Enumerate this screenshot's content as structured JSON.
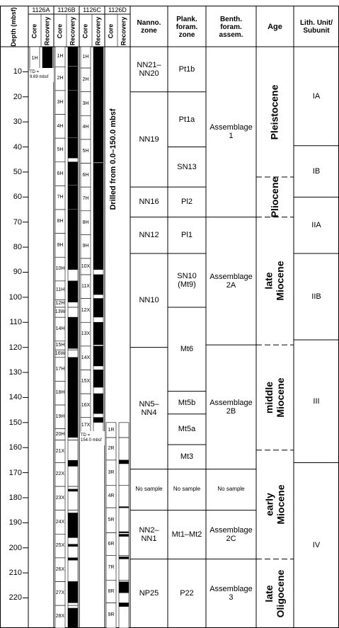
{
  "header": {
    "depth_label": "Depth (mbsf)",
    "core_label": "Core",
    "recovery_label": "Recovery"
  },
  "depth_axis": {
    "range": [
      0,
      232
    ],
    "ticks": [
      10,
      20,
      30,
      40,
      50,
      60,
      70,
      80,
      90,
      100,
      110,
      120,
      130,
      140,
      150,
      160,
      170,
      180,
      190,
      200,
      210,
      220
    ]
  },
  "sites": [
    {
      "name": "1126A",
      "note": "TD =\n9.69 mbsf",
      "cores": [
        {
          "label": "1H",
          "top": 0,
          "bottom": 9.7,
          "rec": [
            [
              0,
              9
            ]
          ]
        }
      ]
    },
    {
      "name": "1126B",
      "cores": [
        {
          "label": "1H",
          "top": 0,
          "bottom": 8,
          "rec": [
            [
              0,
              7.8
            ]
          ]
        },
        {
          "label": "2H",
          "top": 8,
          "bottom": 17.5,
          "rec": [
            [
              8,
              17.3
            ]
          ]
        },
        {
          "label": "3H",
          "top": 17.5,
          "bottom": 27,
          "rec": [
            [
              17.5,
              27
            ]
          ]
        },
        {
          "label": "4H",
          "top": 27,
          "bottom": 36.5,
          "rec": [
            [
              27,
              36.3
            ]
          ]
        },
        {
          "label": "5H",
          "top": 36.5,
          "bottom": 46,
          "rec": [
            [
              36.5,
              44.5
            ]
          ]
        },
        {
          "label": "6H",
          "top": 46,
          "bottom": 55.5,
          "rec": [
            [
              46,
              55.3
            ]
          ]
        },
        {
          "label": "7H",
          "top": 55.5,
          "bottom": 65,
          "rec": [
            [
              55.5,
              64.8
            ]
          ]
        },
        {
          "label": "8H",
          "top": 65,
          "bottom": 74.5,
          "rec": [
            [
              65,
              74.5
            ]
          ]
        },
        {
          "label": "9H",
          "top": 74.5,
          "bottom": 84,
          "rec": [
            [
              74.5,
              84
            ]
          ]
        },
        {
          "label": "10H",
          "top": 84,
          "bottom": 93.5,
          "rec": [
            [
              84,
              89
            ]
          ]
        },
        {
          "label": "11H",
          "top": 93.5,
          "bottom": 101,
          "rec": [
            [
              93.5,
              101
            ]
          ]
        },
        {
          "label": "12H",
          "top": 101,
          "bottom": 104,
          "rec": [
            [
              101,
              102
            ]
          ]
        },
        {
          "label": "13W",
          "top": 104,
          "bottom": 108,
          "rec": []
        },
        {
          "label": "14H",
          "top": 108,
          "bottom": 117.5,
          "rec": [
            [
              108,
              117.5
            ]
          ]
        },
        {
          "label": "15H",
          "top": 117.5,
          "bottom": 121,
          "rec": [
            [
              117.5,
              120.5
            ]
          ]
        },
        {
          "label": "16W",
          "top": 121,
          "bottom": 124,
          "rec": []
        },
        {
          "label": "17H",
          "top": 124,
          "bottom": 133.5,
          "rec": [
            [
              124,
              133.5
            ]
          ]
        },
        {
          "label": "18H",
          "top": 133.5,
          "bottom": 143,
          "rec": [
            [
              133.5,
              143
            ]
          ]
        },
        {
          "label": "19H",
          "top": 143,
          "bottom": 152.5,
          "rec": [
            [
              143,
              152.5
            ]
          ]
        },
        {
          "label": "20H",
          "top": 152.5,
          "bottom": 157,
          "rec": [
            [
              152.5,
              156
            ]
          ]
        },
        {
          "label": "21X",
          "top": 157,
          "bottom": 166,
          "rec": [
            [
              165,
              166
            ]
          ]
        },
        {
          "label": "22X",
          "top": 166,
          "bottom": 175.5,
          "rec": [
            [
              166,
              167.5
            ]
          ]
        },
        {
          "label": "23X",
          "top": 175.5,
          "bottom": 185,
          "rec": [
            [
              176.5,
              177.5
            ]
          ]
        },
        {
          "label": "24X",
          "top": 185,
          "bottom": 194.5,
          "rec": [
            [
              186,
              194.5
            ]
          ]
        },
        {
          "label": "25X",
          "top": 194.5,
          "bottom": 204,
          "rec": [
            [
              194.5,
              196
            ],
            [
              198.5,
              199.5
            ]
          ]
        },
        {
          "label": "26X",
          "top": 204,
          "bottom": 213.5,
          "rec": [
            [
              204,
              205
            ]
          ]
        },
        {
          "label": "27X",
          "top": 213.5,
          "bottom": 223,
          "rec": [
            [
              213.5,
              222
            ]
          ]
        },
        {
          "label": "28X",
          "top": 223,
          "bottom": 232,
          "rec": [
            [
              224,
              232
            ]
          ]
        }
      ]
    },
    {
      "name": "1126C",
      "note": "TD =\n154.0 mbsf",
      "cores": [
        {
          "label": "1H",
          "top": 0,
          "bottom": 8.5,
          "rec": [
            [
              0,
              8.5
            ]
          ]
        },
        {
          "label": "2H",
          "top": 8.5,
          "bottom": 18,
          "rec": [
            [
              8.5,
              18
            ]
          ]
        },
        {
          "label": "3H",
          "top": 18,
          "bottom": 27.5,
          "rec": [
            [
              18,
              27.5
            ]
          ]
        },
        {
          "label": "4H",
          "top": 27.5,
          "bottom": 37,
          "rec": [
            [
              27.5,
              37
            ]
          ]
        },
        {
          "label": "5H",
          "top": 37,
          "bottom": 46.5,
          "rec": [
            [
              37,
              46.2
            ]
          ]
        },
        {
          "label": "6H",
          "top": 46.5,
          "bottom": 56,
          "rec": [
            [
              46.5,
              56
            ]
          ]
        },
        {
          "label": "7H",
          "top": 56,
          "bottom": 65.5,
          "rec": [
            [
              56,
              65.5
            ]
          ]
        },
        {
          "label": "8H",
          "top": 65.5,
          "bottom": 75,
          "rec": [
            [
              65.5,
              75
            ]
          ]
        },
        {
          "label": "9H",
          "top": 75,
          "bottom": 84.5,
          "rec": [
            [
              75,
              84.5
            ]
          ]
        },
        {
          "label": "10X",
          "top": 84.5,
          "bottom": 91,
          "rec": [
            [
              84.5,
              89
            ]
          ]
        },
        {
          "label": "11X",
          "top": 91,
          "bottom": 100.5,
          "rec": [
            [
              91,
              99
            ]
          ]
        },
        {
          "label": "12X",
          "top": 100.5,
          "bottom": 110,
          "rec": [
            [
              100.5,
              108
            ]
          ]
        },
        {
          "label": "13X",
          "top": 110,
          "bottom": 119.5,
          "rec": [
            [
              110,
              119
            ]
          ]
        },
        {
          "label": "14X",
          "top": 119.5,
          "bottom": 129,
          "rec": [
            [
              119.5,
              127.5
            ]
          ]
        },
        {
          "label": "15X",
          "top": 129,
          "bottom": 138.5,
          "rec": [
            [
              129,
              136
            ]
          ]
        },
        {
          "label": "16X",
          "top": 138.5,
          "bottom": 148,
          "rec": [
            [
              138.5,
              146.5
            ]
          ]
        },
        {
          "label": "17X",
          "top": 148,
          "bottom": 154,
          "rec": [
            [
              148,
              150
            ]
          ]
        }
      ]
    },
    {
      "name": "1126D",
      "note": "Drilled from 0.0–150.0 mbsf",
      "cores": [
        {
          "label": "1R",
          "top": 150,
          "bottom": 156,
          "rec": []
        },
        {
          "label": "2R",
          "top": 156,
          "bottom": 165,
          "rec": []
        },
        {
          "label": "3R",
          "top": 165,
          "bottom": 175,
          "rec": [
            [
              165,
              166.5
            ]
          ]
        },
        {
          "label": "4R",
          "top": 175,
          "bottom": 184,
          "rec": [
            [
              183.5,
              184.5
            ]
          ]
        },
        {
          "label": "5R",
          "top": 184,
          "bottom": 194,
          "rec": [
            [
              193.5,
              194.5
            ]
          ]
        },
        {
          "label": "6R",
          "top": 194,
          "bottom": 203,
          "rec": [
            [
              194.5,
              195.5
            ]
          ]
        },
        {
          "label": "7R",
          "top": 203,
          "bottom": 213,
          "rec": [
            [
              203.5,
              204.5
            ]
          ]
        },
        {
          "label": "8R",
          "top": 213,
          "bottom": 222,
          "rec": [
            [
              213.5,
              218
            ]
          ]
        },
        {
          "label": "9R",
          "top": 222,
          "bottom": 232,
          "rec": [
            [
              222,
              223.5
            ]
          ]
        }
      ]
    }
  ],
  "zones": [
    {
      "title": "Nanno.\nzone",
      "units": [
        {
          "label": "NN21–\nNN20",
          "top": 0,
          "bottom": 18
        },
        {
          "label": "NN19",
          "top": 18,
          "bottom": 56
        },
        {
          "label": "NN16",
          "top": 56,
          "bottom": 68
        },
        {
          "label": "NN12",
          "top": 68,
          "bottom": 82.5
        },
        {
          "label": "NN10",
          "top": 82.5,
          "bottom": 120
        },
        {
          "label": "NN5–\nNN4",
          "top": 120,
          "bottom": 168.6
        },
        {
          "label": "No sample",
          "top": 168.6,
          "bottom": 185
        },
        {
          "label": "NN2–\nNN1",
          "top": 185,
          "bottom": 204.5
        },
        {
          "label": "NP25",
          "top": 204.5,
          "bottom": 232
        }
      ]
    },
    {
      "title": "Plank.\nforam.\nzone",
      "units": [
        {
          "label": "Pt1b",
          "top": 0,
          "bottom": 18
        },
        {
          "label": "Pt1a",
          "top": 18,
          "bottom": 40
        },
        {
          "label": "SN13",
          "top": 40,
          "bottom": 56
        },
        {
          "label": "Pl2",
          "top": 56,
          "bottom": 68
        },
        {
          "label": "Pl1",
          "top": 68,
          "bottom": 82.5
        },
        {
          "label": "SN10\n(Mt9)",
          "top": 82.5,
          "bottom": 104
        },
        {
          "label": "Mt6",
          "top": 104,
          "bottom": 137.5
        },
        {
          "label": "Mt5b",
          "top": 137.5,
          "bottom": 146.6
        },
        {
          "label": "Mt5a",
          "top": 146.6,
          "bottom": 158.8
        },
        {
          "label": "Mt3",
          "top": 158.8,
          "bottom": 168.6
        },
        {
          "label": "No sample",
          "top": 168.6,
          "bottom": 185
        },
        {
          "label": "Mt1–Mt2",
          "top": 185,
          "bottom": 204.5
        },
        {
          "label": "P22",
          "top": 204.5,
          "bottom": 232
        }
      ]
    },
    {
      "title": "Benth.\nforam.\nassem.",
      "units": [
        {
          "label": "Assemblage\n1",
          "top": 0,
          "bottom": 68
        },
        {
          "label": "Assemblage\n2A",
          "top": 68,
          "bottom": 119
        },
        {
          "label": "Assemblage\n2B",
          "top": 119,
          "bottom": 168.6
        },
        {
          "label": "No sample",
          "top": 168.6,
          "bottom": 185
        },
        {
          "label": "Assemblage\n2C",
          "top": 185,
          "bottom": 204.5
        },
        {
          "label": "Assemblage\n3",
          "top": 204.5,
          "bottom": 232
        }
      ]
    },
    {
      "title": "Age",
      "units": [
        {
          "label": "Pleistocene",
          "top": 0,
          "bottom": 52
        },
        {
          "label": "Pliocene",
          "top": 52,
          "bottom": 68
        },
        {
          "label": "late\nMiocene",
          "top": 68,
          "bottom": 119
        },
        {
          "label": "middle\nMiocene",
          "top": 119,
          "bottom": 161
        },
        {
          "label": "early\nMiocene",
          "top": 161,
          "bottom": 204.5
        },
        {
          "label": "late\nOligocene",
          "top": 204.5,
          "bottom": 232
        }
      ]
    },
    {
      "title": "Lith. Unit/\nSubunit",
      "units": [
        {
          "label": "IA",
          "top": 0,
          "bottom": 39.5
        },
        {
          "label": "IB",
          "top": 39.5,
          "bottom": 60
        },
        {
          "label": "IIA",
          "top": 60,
          "bottom": 82.5
        },
        {
          "label": "IIB",
          "top": 82.5,
          "bottom": 117
        },
        {
          "label": "III",
          "top": 117,
          "bottom": 166
        },
        {
          "label": "IV",
          "top": 166,
          "bottom": 232
        }
      ]
    }
  ]
}
